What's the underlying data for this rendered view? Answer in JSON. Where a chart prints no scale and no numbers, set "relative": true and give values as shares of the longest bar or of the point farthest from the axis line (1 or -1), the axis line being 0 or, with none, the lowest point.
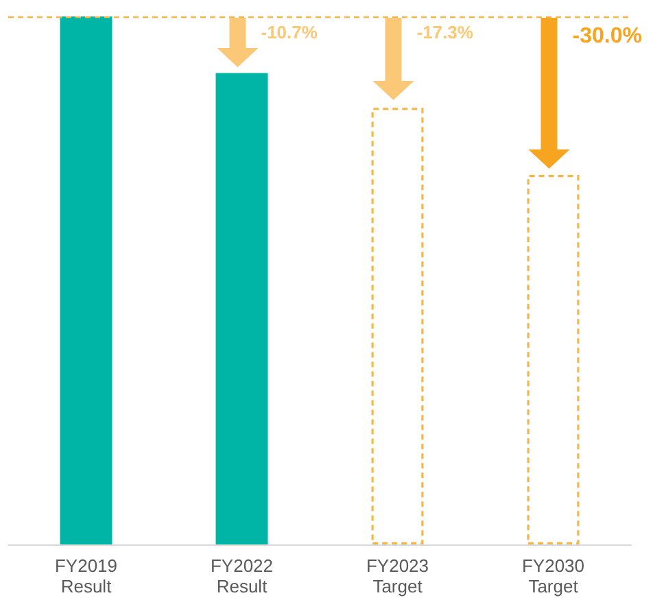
{
  "chart_data": {
    "type": "bar",
    "relative": true,
    "categories": [
      "FY2019\nResult",
      "FY2022\nResult",
      "FY2023\nTarget",
      "FY2030\nTarget"
    ],
    "series": [
      {
        "color": "#00b5a6",
        "values": [
          1,
          0.893,
          null,
          null
        ]
      },
      {
        "color": "#f5b54a",
        "line_style": "dashed",
        "values": [
          null,
          null,
          0.827,
          0.7
        ]
      }
    ],
    "ref_lines": [
      {
        "axis": "y",
        "value": 1,
        "color": "#f5b54a",
        "line_style": "dashed"
      }
    ],
    "annotations": [
      "-10.7%",
      "-17.3%",
      "-30.0%"
    ]
  }
}
